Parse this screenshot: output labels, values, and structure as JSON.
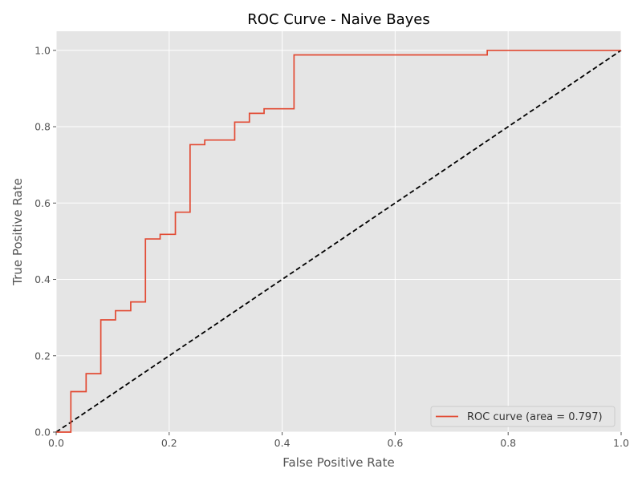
{
  "chart_data": {
    "type": "line",
    "title": "ROC Curve - Naive Bayes",
    "xlabel": "False Positive Rate",
    "ylabel": "True Positive Rate",
    "xlim": [
      0,
      1
    ],
    "ylim": [
      0,
      1.05
    ],
    "xticks": [
      "0.0",
      "0.2",
      "0.4",
      "0.6",
      "0.8",
      "1.0"
    ],
    "yticks": [
      "0.0",
      "0.2",
      "0.4",
      "0.6",
      "0.8",
      "1.0"
    ],
    "grid": true,
    "legend_position": "lower-right",
    "colors": {
      "background": "#e5e5e5",
      "grid": "#ffffff",
      "roc": "#e24a33",
      "diagonal": "#000000"
    },
    "series": [
      {
        "name": "ROC curve (area = 0.797)",
        "style": "step",
        "x": [
          0.0,
          0.026,
          0.026,
          0.053,
          0.053,
          0.079,
          0.079,
          0.105,
          0.105,
          0.132,
          0.132,
          0.158,
          0.158,
          0.184,
          0.184,
          0.211,
          0.211,
          0.237,
          0.237,
          0.263,
          0.263,
          0.316,
          0.316,
          0.342,
          0.342,
          0.368,
          0.368,
          0.421,
          0.421,
          0.763,
          0.763,
          1.0
        ],
        "y": [
          0.0,
          0.0,
          0.106,
          0.106,
          0.153,
          0.153,
          0.294,
          0.294,
          0.318,
          0.318,
          0.341,
          0.341,
          0.506,
          0.506,
          0.518,
          0.518,
          0.576,
          0.576,
          0.753,
          0.753,
          0.765,
          0.765,
          0.812,
          0.812,
          0.835,
          0.835,
          0.847,
          0.847,
          0.988,
          0.988,
          1.0,
          1.0
        ]
      },
      {
        "style": "dashed",
        "x": [
          0,
          1
        ],
        "y": [
          0,
          1
        ]
      }
    ]
  }
}
